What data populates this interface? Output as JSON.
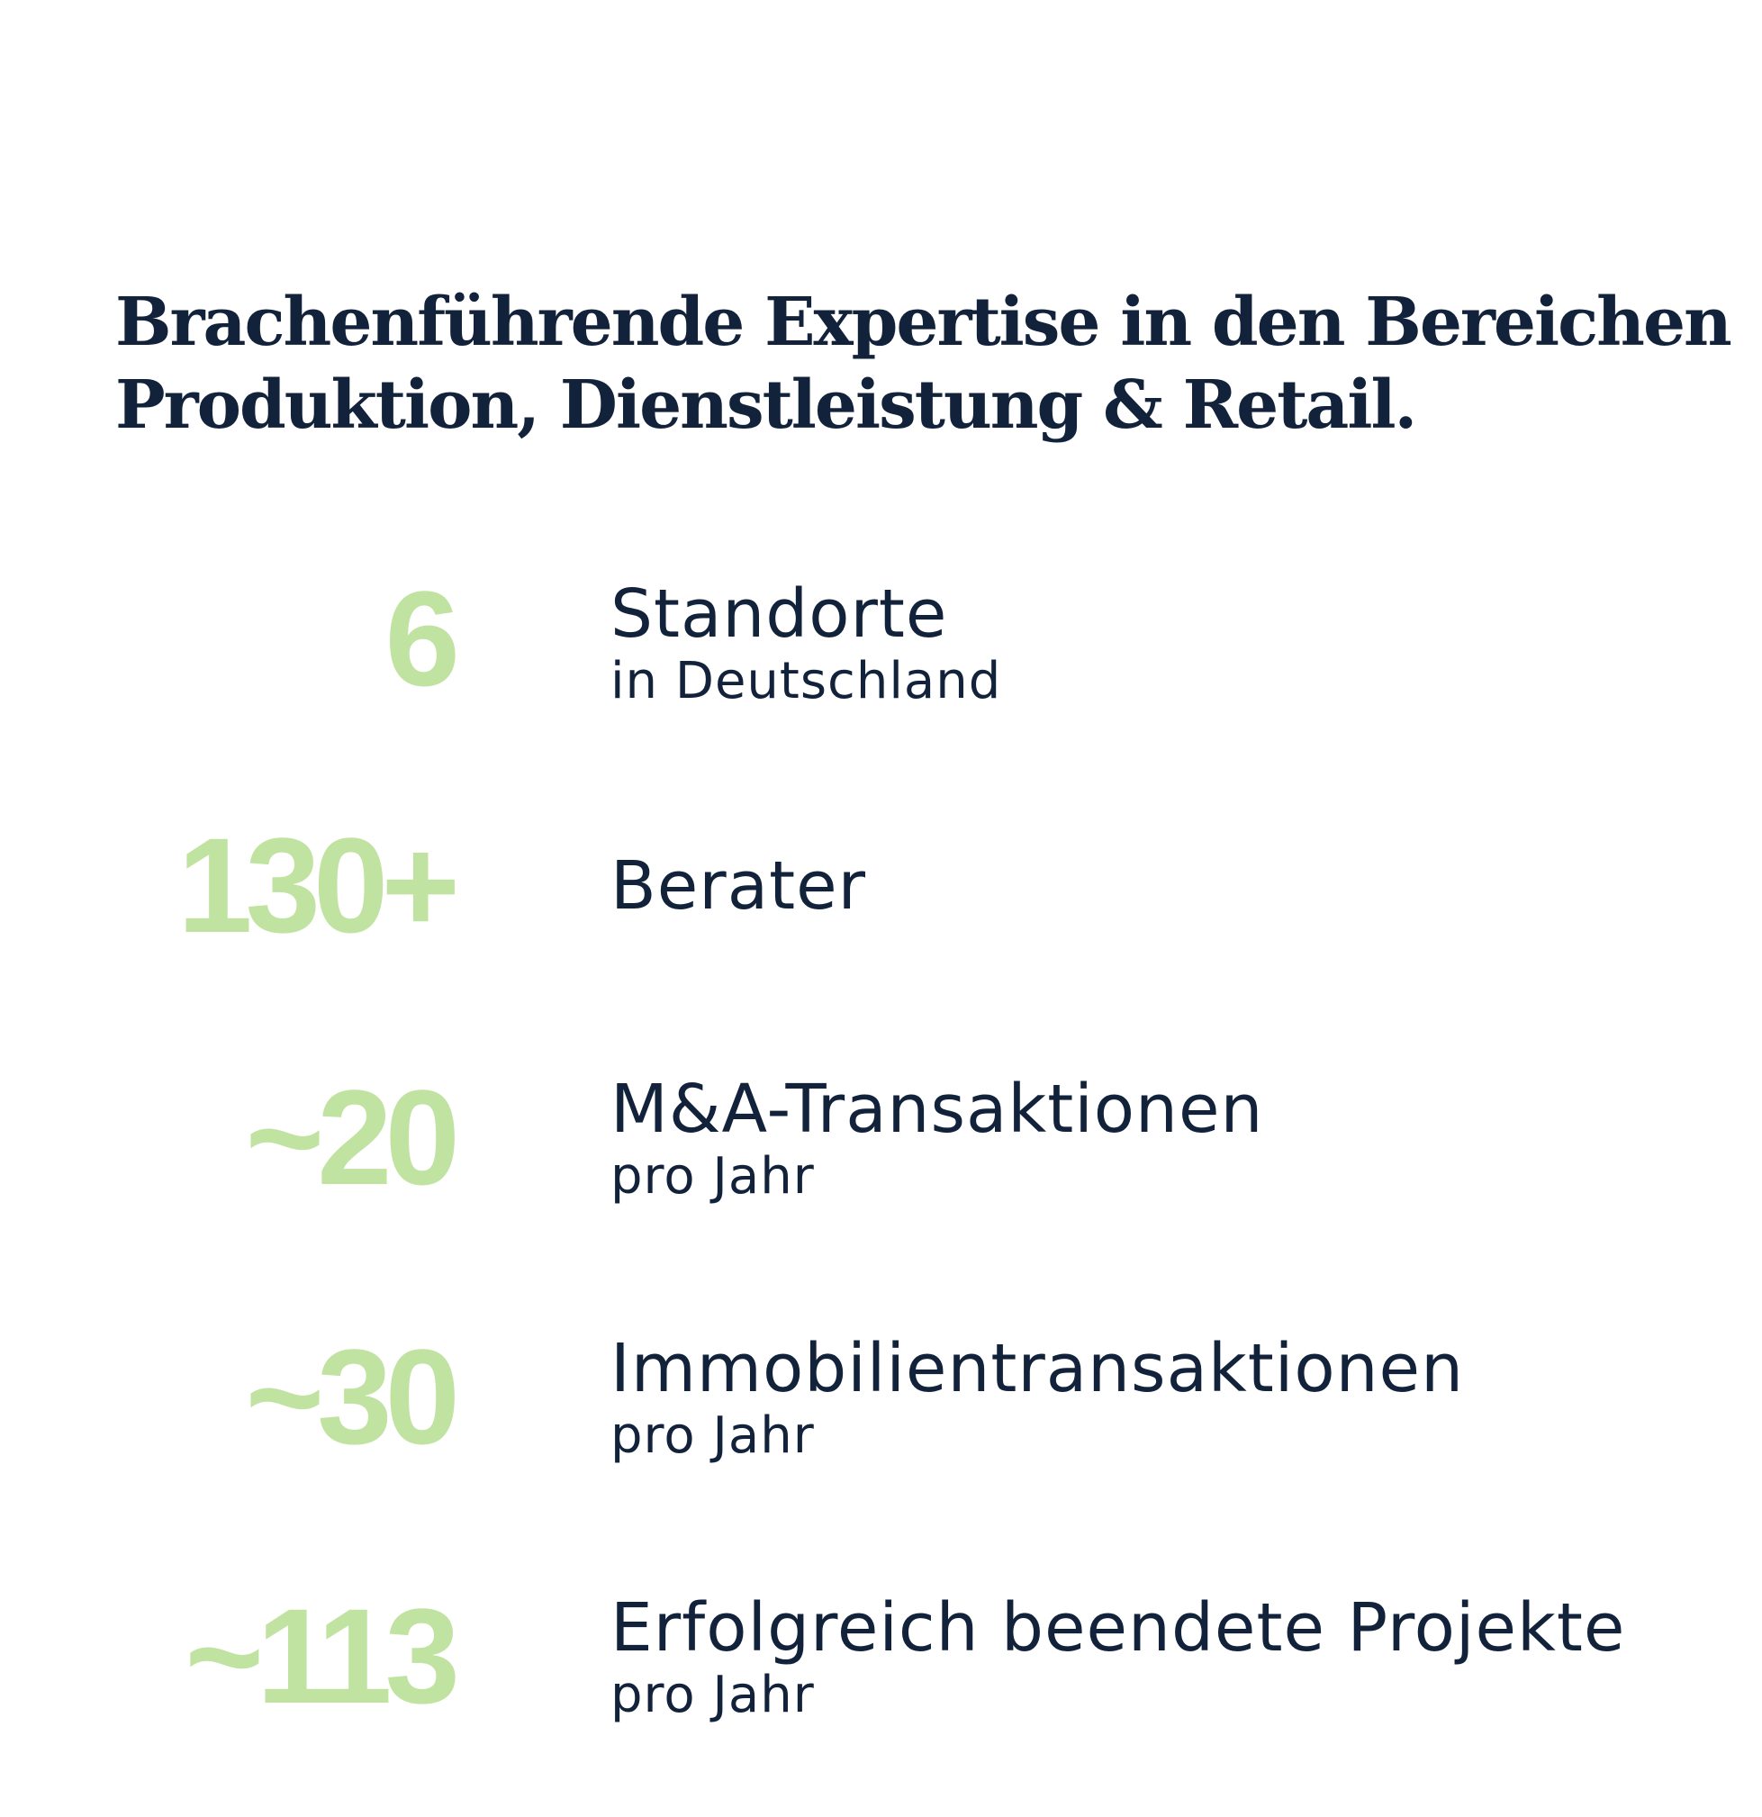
{
  "headline": {
    "line1": "Brachenführende Expertise in den Bereichen",
    "line2": "Produktion, Dienstleistung & Retail."
  },
  "colors": {
    "headline": "#11223a",
    "number": "#c1e3a1",
    "text": "#11223a",
    "background": "#ffffff"
  },
  "stats": [
    {
      "number": "6",
      "title": "Standorte",
      "subtitle": "in Deutschland"
    },
    {
      "number": "130+",
      "title": "Berater",
      "subtitle": ""
    },
    {
      "number": "~20",
      "title": "M&A-Transaktionen",
      "subtitle": "pro Jahr"
    },
    {
      "number": "~30",
      "title": "Immobilientransaktionen",
      "subtitle": "pro Jahr"
    },
    {
      "number": "~113",
      "title": "Erfolgreich beendete Projekte",
      "subtitle": "pro Jahr"
    }
  ]
}
